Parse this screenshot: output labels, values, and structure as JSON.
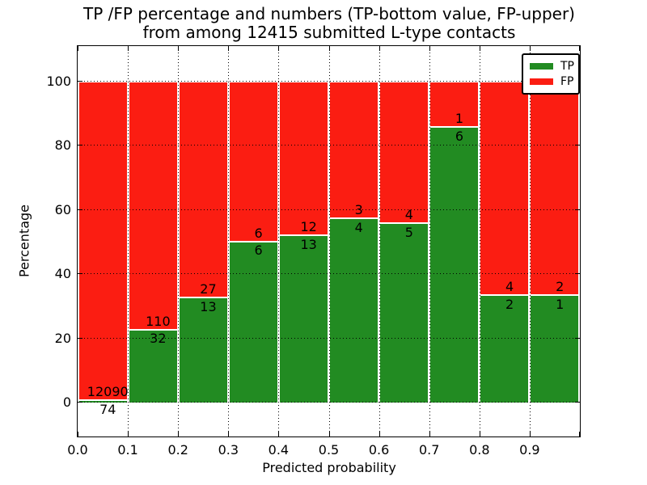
{
  "title": {
    "line1": "TP /FP percentage and numbers (TP-bottom value, FP-upper)",
    "line2": "from among 12415 submitted L-type contacts"
  },
  "axes": {
    "xlabel": "Predicted probability",
    "ylabel": "Percentage"
  },
  "legend": {
    "items": [
      {
        "label": "TP",
        "color": "#228b22"
      },
      {
        "label": "FP",
        "color": "#fb1d12"
      }
    ]
  },
  "chart_data": {
    "type": "bar",
    "stacked": true,
    "normalized_to_percent": true,
    "title": "TP /FP percentage and numbers (TP-bottom value, FP-upper)\nfrom among 12415 submitted L-type contacts",
    "xlabel": "Predicted probability",
    "ylabel": "Percentage",
    "total_contacts": 12415,
    "bin_starts": [
      0.0,
      0.1,
      0.2,
      0.3,
      0.4,
      0.5,
      0.6,
      0.7,
      0.8,
      0.9
    ],
    "bin_width": 0.1,
    "series": [
      {
        "name": "TP",
        "color": "#228b22",
        "values": [
          74,
          32,
          13,
          6,
          13,
          4,
          5,
          6,
          2,
          1
        ]
      },
      {
        "name": "FP",
        "color": "#fb1d12",
        "values": [
          12090,
          110,
          27,
          6,
          12,
          3,
          4,
          1,
          4,
          2
        ]
      }
    ],
    "bar_label_note": "TP count printed below segment boundary, FP count above it",
    "xlim": [
      0.0,
      1.0
    ],
    "ylim": [
      -10.6,
      111.1
    ],
    "xticks": [
      "0.0",
      "0.1",
      "0.2",
      "0.3",
      "0.4",
      "0.5",
      "0.6",
      "0.7",
      "0.8",
      "0.9"
    ],
    "yticks": [
      0,
      20,
      40,
      60,
      80,
      100
    ],
    "grid": true,
    "grid_style": "dotted",
    "legend_position": "upper right"
  }
}
